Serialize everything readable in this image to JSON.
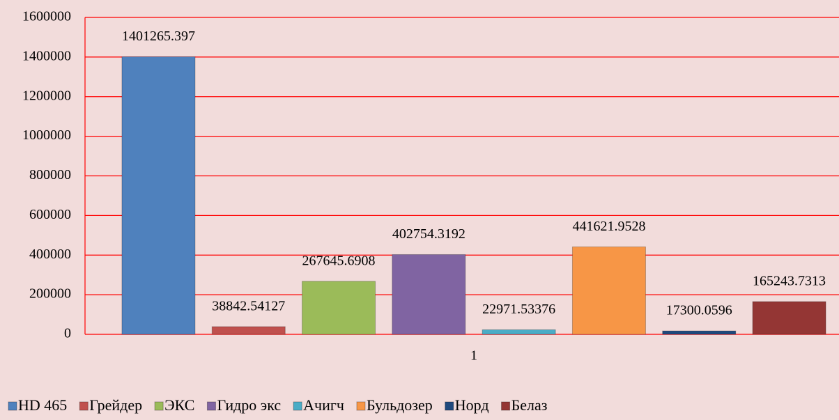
{
  "chart_data": {
    "type": "bar",
    "categories": [
      "1"
    ],
    "series": [
      {
        "name": "HD 465",
        "color": "#4f81bd",
        "values": [
          1401265.397
        ]
      },
      {
        "name": "Грейдер",
        "color": "#c0504d",
        "values": [
          38842.54127
        ]
      },
      {
        "name": "ЭКС",
        "color": "#9bbb59",
        "values": [
          267645.6908
        ]
      },
      {
        "name": "Гидро экс",
        "color": "#8064a2",
        "values": [
          402754.3192
        ]
      },
      {
        "name": "Ачигч",
        "color": "#4bacc6",
        "values": [
          22971.53376
        ]
      },
      {
        "name": "Бульдозер",
        "color": "#f79646",
        "values": [
          441621.9528
        ]
      },
      {
        "name": "Норд",
        "color": "#1f497d",
        "values": [
          17300.0596
        ]
      },
      {
        "name": "Белаз",
        "color": "#943634",
        "values": [
          165243.7313
        ]
      }
    ],
    "ylim": [
      0,
      1600000
    ],
    "yticks": [
      0,
      200000,
      400000,
      600000,
      800000,
      1000000,
      1200000,
      1400000,
      1600000
    ],
    "grid": true,
    "legend": "bottom"
  }
}
